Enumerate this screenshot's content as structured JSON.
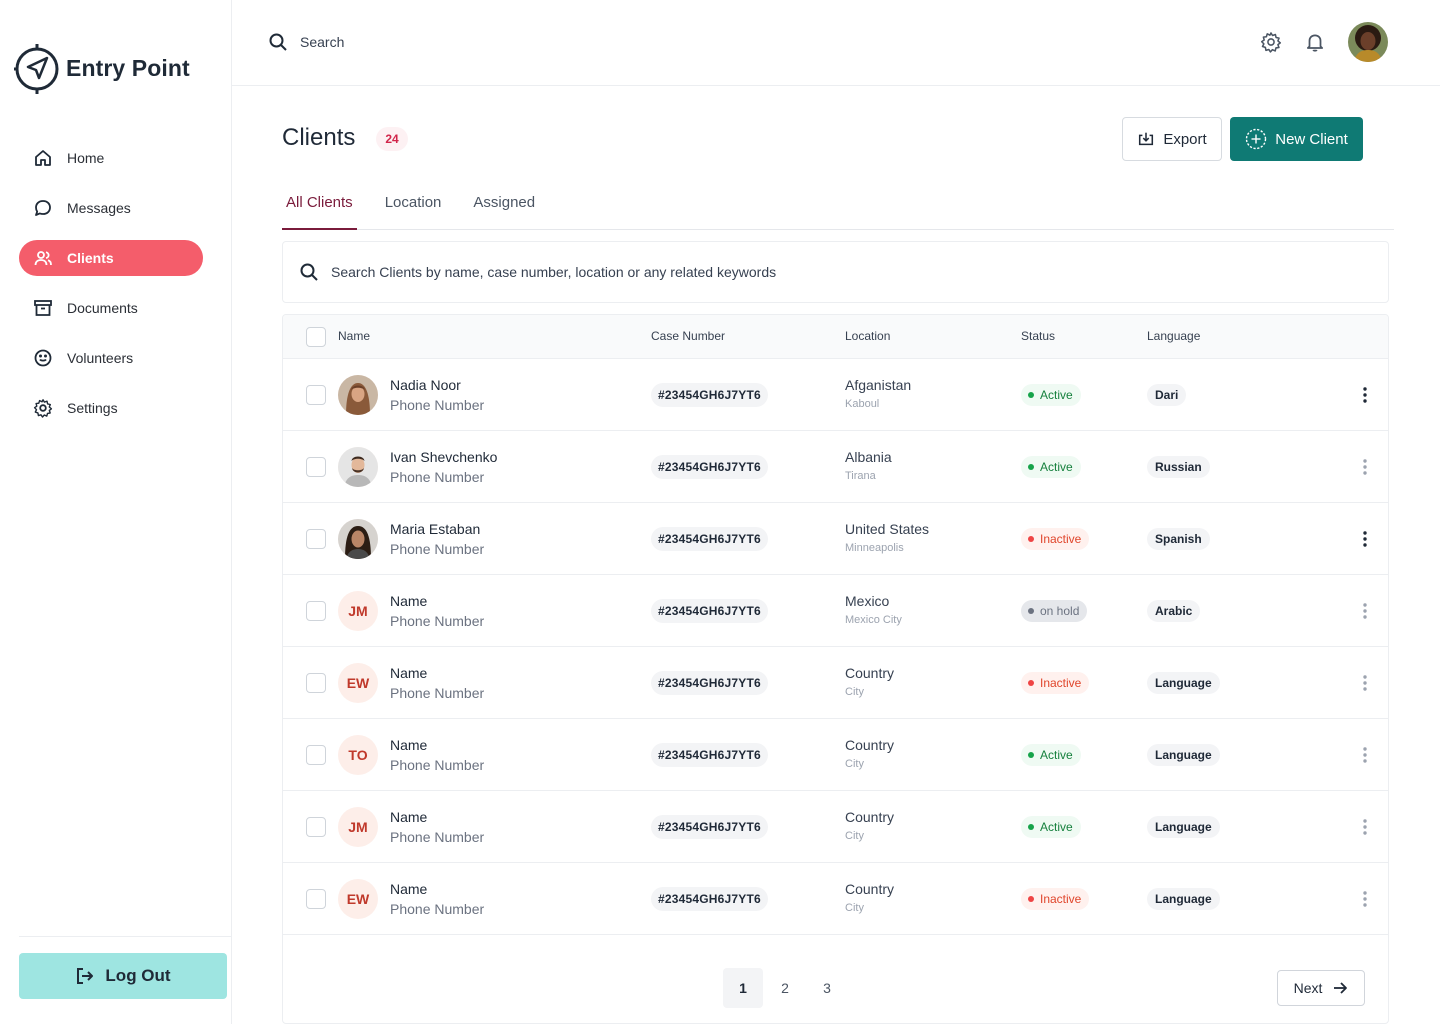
{
  "app": {
    "name": "Entry Point"
  },
  "sidebar": {
    "items": [
      {
        "label": "Home",
        "icon": "home-icon"
      },
      {
        "label": "Messages",
        "icon": "message-icon"
      },
      {
        "label": "Clients",
        "icon": "users-icon",
        "active": true
      },
      {
        "label": "Documents",
        "icon": "archive-icon"
      },
      {
        "label": "Volunteers",
        "icon": "smile-icon"
      },
      {
        "label": "Settings",
        "icon": "gear-icon"
      }
    ],
    "logout_label": "Log Out"
  },
  "topbar": {
    "search_placeholder": "Search"
  },
  "header": {
    "title": "Clients",
    "count": "24",
    "export_label": "Export",
    "new_client_label": "New Client"
  },
  "tabs": [
    {
      "label": "All Clients",
      "active": true
    },
    {
      "label": "Location"
    },
    {
      "label": "Assigned"
    }
  ],
  "filter": {
    "placeholder": "Search Clients by name, case number, location or any related keywords"
  },
  "table": {
    "columns": [
      "Name",
      "Case Number",
      "Location",
      "Status",
      "Language"
    ],
    "rows": [
      {
        "name": "Nadia Noor",
        "phone": "Phone Number",
        "avatar": "photo",
        "case": "#23454GH6J7YT6",
        "country": "Afganistan",
        "city": "Kaboul",
        "status": "Active",
        "language": "Dari"
      },
      {
        "name": "Ivan Shevchenko",
        "phone": "Phone Number",
        "avatar": "photo",
        "case": "#23454GH6J7YT6",
        "country": "Albania",
        "city": "Tirana",
        "status": "Active",
        "language": "Russian"
      },
      {
        "name": "Maria Estaban",
        "phone": "Phone Number",
        "avatar": "photo",
        "case": "#23454GH6J7YT6",
        "country": "United States",
        "city": "Minneapolis",
        "status": "Inactive",
        "language": "Spanish"
      },
      {
        "name": "Name",
        "phone": "Phone Number",
        "initials": "JM",
        "case": "#23454GH6J7YT6",
        "country": "Mexico",
        "city": "Mexico City",
        "status": "on hold",
        "language": "Arabic"
      },
      {
        "name": "Name",
        "phone": "Phone Number",
        "initials": "EW",
        "case": "#23454GH6J7YT6",
        "country": "Country",
        "city": "City",
        "status": "Inactive",
        "language": "Language"
      },
      {
        "name": "Name",
        "phone": "Phone Number",
        "initials": "TO",
        "case": "#23454GH6J7YT6",
        "country": "Country",
        "city": "City",
        "status": "Active",
        "language": "Language"
      },
      {
        "name": "Name",
        "phone": "Phone Number",
        "initials": "JM",
        "case": "#23454GH6J7YT6",
        "country": "Country",
        "city": "City",
        "status": "Active",
        "language": "Language"
      },
      {
        "name": "Name",
        "phone": "Phone Number",
        "initials": "EW",
        "case": "#23454GH6J7YT6",
        "country": "Country",
        "city": "City",
        "status": "Inactive",
        "language": "Language"
      }
    ]
  },
  "pagination": {
    "pages": [
      "1",
      "2",
      "3"
    ],
    "current": "1",
    "next_label": "Next"
  },
  "colors": {
    "accent": "#f45d6b",
    "primary": "#0f7a74",
    "logout": "#9ee5e1",
    "tab_active": "#7a1b3b"
  }
}
